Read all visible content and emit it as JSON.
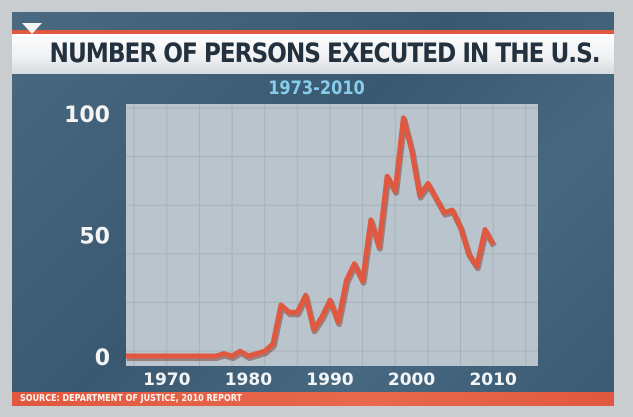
{
  "chart_data": {
    "type": "line",
    "title": "NUMBER OF PERSONS EXECUTED IN THE U.S.",
    "subtitle": "1973-2010",
    "source": "SOURCE: DEPARTMENT OF JUSTICE, 2010 REPORT",
    "xlabel": "",
    "ylabel": "",
    "xlim": [
      1965,
      2015.5
    ],
    "ylim": [
      0,
      100
    ],
    "xticks": [
      1970,
      1980,
      1990,
      2000,
      2010
    ],
    "yticks": [
      0,
      50,
      100
    ],
    "grid": true,
    "x": [
      1973,
      1974,
      1975,
      1976,
      1977,
      1978,
      1979,
      1980,
      1981,
      1982,
      1983,
      1984,
      1985,
      1986,
      1987,
      1988,
      1989,
      1990,
      1991,
      1992,
      1993,
      1994,
      1995,
      1996,
      1997,
      1998,
      1999,
      2000,
      2001,
      2002,
      2003,
      2004,
      2005,
      2006,
      2007,
      2008,
      2009,
      2010
    ],
    "values": [
      0,
      0,
      0,
      0,
      1,
      0,
      2,
      0,
      1,
      2,
      5,
      21,
      18,
      18,
      25,
      11,
      16,
      23,
      14,
      31,
      38,
      31,
      56,
      45,
      74,
      68,
      98,
      85,
      66,
      71,
      65,
      59,
      60,
      53,
      42,
      37,
      52,
      46
    ],
    "colors": {
      "line": "#e0583f",
      "plot_bg": "#b9c4cc",
      "panel": "#3d5b72",
      "title_text": "#24323f",
      "subtitle": "#86cdec"
    }
  }
}
